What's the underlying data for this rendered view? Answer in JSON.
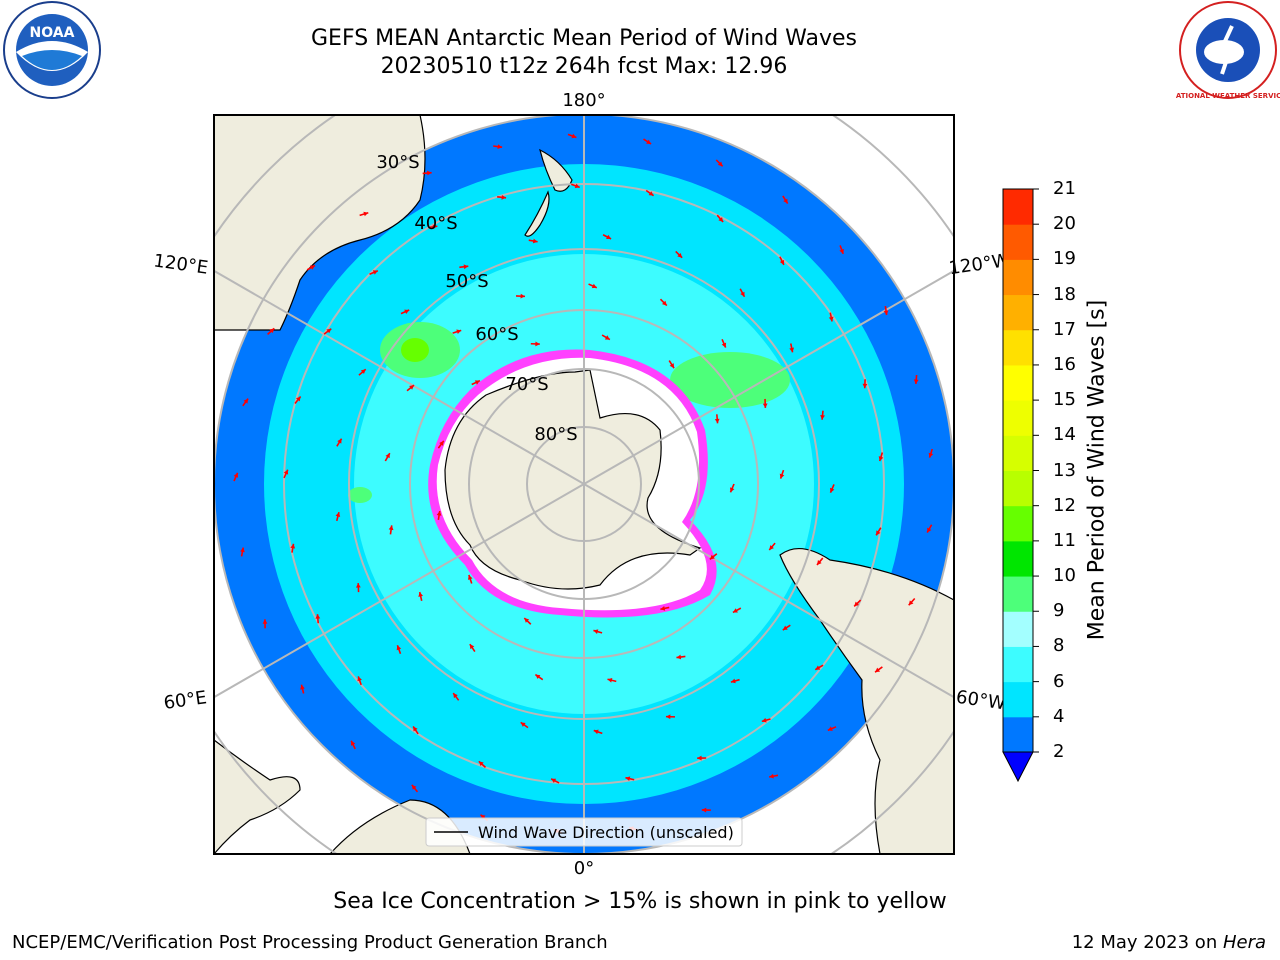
{
  "header": {
    "title_line1": "GEFS MEAN Antarctic Mean Period of Wind Waves",
    "title_line2": "20230510 t12z 264h fcst   Max: 12.96"
  },
  "logos": {
    "left": {
      "icon": "noaa-logo",
      "text": "NOAA"
    },
    "right": {
      "icon": "nws-logo",
      "text": "NATIONAL WEATHER SERVICE"
    }
  },
  "map": {
    "projection": "south-polar-stereographic",
    "longitude_labels": {
      "top": "180°",
      "bottom": "0°",
      "upper_left": "120°E",
      "upper_right": "120°W",
      "lower_left": "60°E",
      "lower_right": "60°W"
    },
    "latitude_labels": [
      "30°S",
      "40°S",
      "50°S",
      "60°S",
      "70°S",
      "80°S"
    ],
    "legend_label": "Wind Wave Direction (unscaled)",
    "colors": {
      "land": "#efedde",
      "ocean_ring_outer": "#0078ff",
      "ocean_mid": "#00e5ff",
      "ocean_inner": "#3dfcff",
      "sea_ice_edge": "#ff40ff",
      "arrow": "#ff0000",
      "grid": "#b8b8b8"
    }
  },
  "colorbar": {
    "label": "Mean Period of Wind Waves [s]",
    "ticks": [
      "2",
      "4",
      "6",
      "8",
      "9",
      "10",
      "11",
      "12",
      "13",
      "14",
      "15",
      "16",
      "17",
      "18",
      "19",
      "20",
      "21"
    ],
    "colors": [
      "#0078ff",
      "#00e5ff",
      "#3dfcff",
      "#a3ffff",
      "#4dff7a",
      "#00e600",
      "#66ff00",
      "#b8ff00",
      "#d6ff00",
      "#eeff00",
      "#ffff00",
      "#ffe000",
      "#ffb000",
      "#ff8c00",
      "#ff5a00",
      "#ff2a00",
      "#ff0000"
    ],
    "under_color": "#0000ff"
  },
  "caption": "Sea Ice Concentration > 15% is shown in pink to yellow",
  "footer": {
    "left": "NCEP/EMC/Verification Post Processing Product Generation Branch",
    "right_date": "12 May 2023 on ",
    "right_host": "Hera"
  }
}
